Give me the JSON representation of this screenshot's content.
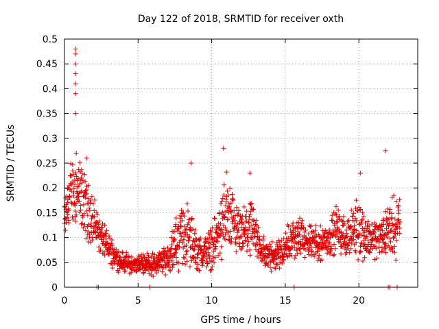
{
  "chart_data": {
    "type": "scatter",
    "title": "Day 122 of 2018, SRMTID for receiver oxth",
    "xlabel": "GPS time / hours",
    "ylabel": "SRMTID / TECUs",
    "xlim": [
      0,
      24
    ],
    "ylim": [
      0,
      0.5
    ],
    "x_ticks": [
      0,
      5,
      10,
      15,
      20
    ],
    "x_tick_labels": [
      "0",
      "5",
      "10",
      "15",
      "20"
    ],
    "y_ticks": [
      0,
      0.05,
      0.1,
      0.15,
      0.2,
      0.25,
      0.3,
      0.35,
      0.4,
      0.45,
      0.5
    ],
    "y_tick_labels": [
      "0",
      "0.05",
      "0.1",
      "0.15",
      "0.2",
      "0.25",
      "0.3",
      "0.35",
      "0.4",
      "0.45",
      "0.5"
    ],
    "grid": true,
    "marker": "+",
    "color": "#e00000",
    "series": [
      {
        "name": "SRMTID",
        "profile_x": [
          0,
          0.3,
          0.6,
          1.0,
          1.5,
          2.0,
          2.5,
          3.0,
          3.5,
          4.0,
          4.5,
          5.0,
          5.5,
          6.0,
          6.5,
          7.0,
          7.5,
          8.0,
          8.5,
          9.0,
          9.5,
          10.0,
          10.5,
          11.0,
          11.5,
          12.0,
          12.5,
          13.0,
          13.5,
          14.0,
          14.5,
          15.0,
          15.5,
          16.0,
          16.5,
          17.0,
          17.5,
          18.0,
          18.5,
          19.0,
          19.5,
          20.0,
          20.5,
          21.0,
          21.5,
          22.0,
          22.5,
          22.8
        ],
        "profile_y": [
          0.13,
          0.18,
          0.2,
          0.19,
          0.16,
          0.13,
          0.1,
          0.08,
          0.06,
          0.05,
          0.045,
          0.045,
          0.05,
          0.045,
          0.05,
          0.06,
          0.08,
          0.11,
          0.1,
          0.07,
          0.07,
          0.08,
          0.11,
          0.15,
          0.12,
          0.1,
          0.12,
          0.1,
          0.07,
          0.06,
          0.07,
          0.08,
          0.1,
          0.1,
          0.09,
          0.09,
          0.09,
          0.1,
          0.12,
          0.1,
          0.11,
          0.12,
          0.1,
          0.1,
          0.1,
          0.12,
          0.12,
          0.13
        ],
        "profile_spread": [
          0.03,
          0.05,
          0.06,
          0.06,
          0.05,
          0.04,
          0.03,
          0.025,
          0.02,
          0.018,
          0.015,
          0.015,
          0.018,
          0.02,
          0.02,
          0.025,
          0.04,
          0.06,
          0.05,
          0.03,
          0.03,
          0.035,
          0.05,
          0.07,
          0.05,
          0.04,
          0.05,
          0.04,
          0.03,
          0.025,
          0.03,
          0.03,
          0.035,
          0.035,
          0.03,
          0.03,
          0.03,
          0.03,
          0.04,
          0.035,
          0.035,
          0.05,
          0.035,
          0.035,
          0.035,
          0.05,
          0.05,
          0.05
        ],
        "outliers": [
          {
            "x": 0.75,
            "y": 0.48
          },
          {
            "x": 0.75,
            "y": 0.47
          },
          {
            "x": 0.75,
            "y": 0.45
          },
          {
            "x": 0.75,
            "y": 0.43
          },
          {
            "x": 0.75,
            "y": 0.41
          },
          {
            "x": 0.75,
            "y": 0.39
          },
          {
            "x": 0.75,
            "y": 0.35
          },
          {
            "x": 0.8,
            "y": 0.27
          },
          {
            "x": 1.5,
            "y": 0.26
          },
          {
            "x": 10.8,
            "y": 0.28
          },
          {
            "x": 21.8,
            "y": 0.275
          },
          {
            "x": 8.6,
            "y": 0.25
          },
          {
            "x": 12.6,
            "y": 0.23
          },
          {
            "x": 20.1,
            "y": 0.23
          }
        ],
        "zero_points": [
          2.2,
          2.3,
          5.8,
          15.6,
          22.0,
          22.1,
          22.6
        ]
      }
    ]
  }
}
